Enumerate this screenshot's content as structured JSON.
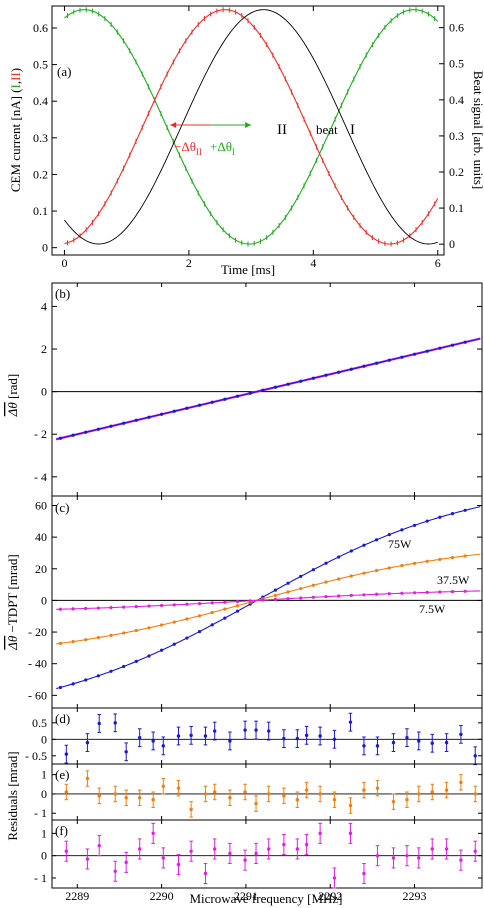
{
  "figure": {
    "xlabel_bottom": "Microwave frequency [MHz]",
    "residuals_ylabel": "Residuals [mrad]"
  },
  "colors": {
    "I": "#22aa22",
    "II": "#e8302a",
    "beat": "#000000",
    "w75": "#1a1acc",
    "w37": "#ee7f11",
    "w7": "#dd22dd",
    "axis": "#000000"
  },
  "chart_data": [
    {
      "panel": "a",
      "type": "line",
      "label": "(a)",
      "xlabel": "Time [ms]",
      "ylabel_left": "CEM current [nA] (I, II)",
      "ylabel_left_parts": [
        "CEM current [nA] (",
        "I",
        ",",
        "II",
        ")"
      ],
      "ylabel_right": "Beat signal [arb. units]",
      "xlim": [
        -0.2,
        6.1
      ],
      "ylim_left": [
        -0.02,
        0.66
      ],
      "ylim_right": [
        -0.03,
        0.66
      ],
      "xticks": [
        0,
        2,
        4,
        6
      ],
      "yticks_left": [
        0,
        0.1,
        0.2,
        0.3,
        0.4,
        0.5,
        0.6
      ],
      "yticks_right": [
        0,
        0.1,
        0.2,
        0.3,
        0.4,
        0.5,
        0.6
      ],
      "series": [
        {
          "name": "I",
          "kind": "cosine",
          "offset": 0.33,
          "amplitude": 0.32,
          "period_ms": 5.3,
          "peak_ms": 0.32,
          "x_range": [
            0,
            6
          ],
          "markers": true
        },
        {
          "name": "II",
          "kind": "cosine",
          "offset": 0.33,
          "amplitude": 0.32,
          "period_ms": 5.3,
          "peak_ms": 2.58,
          "x_range": [
            0,
            6
          ],
          "markers": true
        },
        {
          "name": "beat",
          "kind": "cosine",
          "offset": 0.33,
          "amplitude": 0.32,
          "period_ms": 5.3,
          "peak_ms": 3.2,
          "x_range": [
            0,
            6
          ],
          "markers": false
        }
      ],
      "annotations": {
        "minus_dtheta": "−Δθ",
        "minus_dtheta_sub": "II",
        "plus_dtheta": "+Δθ",
        "plus_dtheta_sub": "I",
        "arrow_left_ms": [
          1.7,
          2.35
        ],
        "arrow_right_ms": [
          2.35,
          3.0
        ],
        "arrow_y": 0.335,
        "label_II": "II",
        "label_beat": "beat",
        "label_I": "I"
      }
    },
    {
      "panel": "b",
      "type": "line",
      "label": "(b)",
      "ylabel": "Δθ [rad]",
      "ylabel_main": "Δθ",
      "ylabel_unit": " [rad]",
      "xlim": [
        2288.7,
        2293.8
      ],
      "ylim": [
        -4.9,
        5.1
      ],
      "yticks": [
        -4,
        -2,
        0,
        2,
        4
      ],
      "ytick_labels": [
        "- 4",
        "- 2",
        "0",
        "2",
        "4"
      ],
      "line": {
        "slope": 0.9395,
        "x0": 2291.13,
        "x_from": 2288.75,
        "x_to": 2293.78
      },
      "points_x_from": 2288.8,
      "points_x_step": 0.15,
      "points_count": 33
    },
    {
      "panel": "c",
      "type": "line",
      "label": "(c)",
      "ylabel": "Δθ −TDPT [mrad]",
      "ylabel_main": "Δθ",
      "ylabel_unit": " −TDPT [mrad]",
      "xlim": [
        2288.7,
        2293.8
      ],
      "ylim": [
        -68,
        66
      ],
      "yticks": [
        -60,
        -40,
        -20,
        0,
        20,
        40,
        60
      ],
      "ytick_labels": [
        "- 60",
        "- 40",
        "- 20",
        "0",
        "20",
        "40",
        "60"
      ],
      "x0": 2291.13,
      "series": [
        {
          "name": "75W",
          "color_key": "w75",
          "model": "tanh",
          "amplitude": 77.0,
          "scale": 2.6
        },
        {
          "name": "37.5W",
          "color_key": "w37",
          "model": "tanh",
          "amplitude": 38.0,
          "scale": 2.6
        },
        {
          "name": "7.5W",
          "color_key": "w7",
          "model": "tanh",
          "amplitude": 7.8,
          "scale": 2.6
        }
      ]
    },
    {
      "panel": "d",
      "type": "scatter",
      "label": "(d)",
      "color_key": "w75",
      "ylim": [
        -0.75,
        0.95
      ],
      "yticks": [
        -0.5,
        0,
        0.5
      ],
      "ytick_labels": [
        "- 0.5",
        "0",
        "0.5"
      ],
      "errbar": 0.27,
      "x": [
        2288.87,
        2289.12,
        2289.26,
        2289.45,
        2289.58,
        2289.74,
        2289.9,
        2290.02,
        2290.2,
        2290.35,
        2290.52,
        2290.63,
        2290.81,
        2290.99,
        2291.12,
        2291.27,
        2291.45,
        2291.61,
        2291.72,
        2291.88,
        2292.05,
        2292.24,
        2292.4,
        2292.56,
        2292.75,
        2292.91,
        2293.05,
        2293.21,
        2293.38,
        2293.55,
        2293.72
      ],
      "values": [
        -0.45,
        -0.1,
        0.48,
        0.5,
        -0.38,
        0.05,
        -0.05,
        -0.2,
        0.1,
        0.12,
        0.1,
        0.25,
        -0.05,
        0.28,
        0.28,
        0.25,
        0.02,
        0.02,
        0.12,
        0.1,
        0.0,
        0.52,
        -0.2,
        -0.2,
        -0.1,
        0.05,
        -0.05,
        -0.12,
        -0.1,
        0.15,
        -0.5
      ]
    },
    {
      "panel": "e",
      "type": "scatter",
      "label": "(e)",
      "color_key": "w37",
      "ylim": [
        -1.35,
        1.55
      ],
      "yticks": [
        -1,
        0,
        1
      ],
      "ytick_labels": [
        "- 1",
        "0",
        "1"
      ],
      "errbar": 0.4,
      "x": [
        2288.87,
        2289.12,
        2289.26,
        2289.45,
        2289.58,
        2289.74,
        2289.9,
        2290.02,
        2290.2,
        2290.35,
        2290.52,
        2290.63,
        2290.81,
        2290.99,
        2291.12,
        2291.27,
        2291.45,
        2291.61,
        2291.72,
        2291.88,
        2292.05,
        2292.24,
        2292.4,
        2292.56,
        2292.75,
        2292.91,
        2293.05,
        2293.21,
        2293.38,
        2293.55,
        2293.72
      ],
      "values": [
        0.1,
        0.8,
        -0.1,
        0.0,
        -0.2,
        -0.2,
        -0.3,
        0.4,
        0.3,
        -0.8,
        0.0,
        0.1,
        -0.2,
        0.1,
        -0.5,
        0.0,
        -0.1,
        -0.3,
        0.2,
        0.0,
        -0.3,
        -0.6,
        0.2,
        0.3,
        -0.4,
        -0.3,
        0.0,
        0.1,
        0.2,
        0.6,
        0.0
      ]
    },
    {
      "panel": "f",
      "type": "scatter",
      "label": "(f)",
      "color_key": "w7",
      "ylim": [
        -1.45,
        1.6
      ],
      "yticks": [
        -1,
        0,
        1
      ],
      "ytick_labels": [
        "- 1",
        "0",
        "1"
      ],
      "errbar": 0.45,
      "x": [
        2288.87,
        2289.12,
        2289.26,
        2289.45,
        2289.58,
        2289.74,
        2289.9,
        2290.02,
        2290.2,
        2290.35,
        2290.52,
        2290.63,
        2290.81,
        2290.99,
        2291.12,
        2291.27,
        2291.45,
        2291.61,
        2291.72,
        2291.88,
        2292.05,
        2292.24,
        2292.4,
        2292.56,
        2292.75,
        2292.91,
        2293.05,
        2293.21,
        2293.38,
        2293.55,
        2293.72
      ],
      "values": [
        0.2,
        -0.15,
        0.45,
        -0.7,
        -0.3,
        0.3,
        1.0,
        -0.1,
        -0.4,
        0.2,
        -0.8,
        0.3,
        0.1,
        -0.2,
        0.1,
        0.3,
        0.5,
        0.3,
        0.5,
        1.0,
        -1.0,
        1.0,
        -0.8,
        0.0,
        -0.1,
        0.0,
        -0.1,
        0.3,
        0.3,
        -0.2,
        0.2
      ]
    },
    {
      "panel": "axis-bottom",
      "type": "axis",
      "xticks": [
        2289,
        2290,
        2291,
        2292,
        2293
      ],
      "xlabel": "Microwave frequency [MHz]"
    }
  ]
}
